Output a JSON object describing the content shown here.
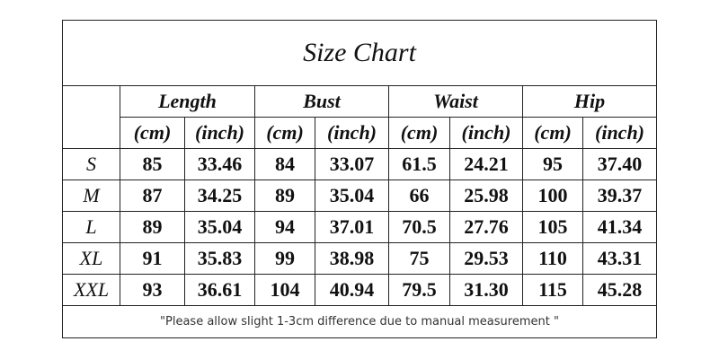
{
  "title": "Size Chart",
  "groups": [
    "Length",
    "Bust",
    "Waist",
    "Hip"
  ],
  "units": [
    "(cm)",
    "(inch)",
    "(cm)",
    "(inch)",
    "(cm)",
    "(inch)",
    "(cm)",
    "(inch)"
  ],
  "rows": [
    [
      "S",
      "85",
      "33.46",
      "84",
      "33.07",
      "61.5",
      "24.21",
      "95",
      "37.40"
    ],
    [
      "M",
      "87",
      "34.25",
      "89",
      "35.04",
      "66",
      "25.98",
      "100",
      "39.37"
    ],
    [
      "L",
      "89",
      "35.04",
      "94",
      "37.01",
      "70.5",
      "27.76",
      "105",
      "41.34"
    ],
    [
      "XL",
      "91",
      "35.83",
      "99",
      "38.98",
      "75",
      "29.53",
      "110",
      "43.31"
    ],
    [
      "XXL",
      "93",
      "36.61",
      "104",
      "40.94",
      "79.5",
      "31.30",
      "115",
      "45.28"
    ]
  ],
  "note": "\"Please allow slight 1-3cm difference due to manual measurement \""
}
